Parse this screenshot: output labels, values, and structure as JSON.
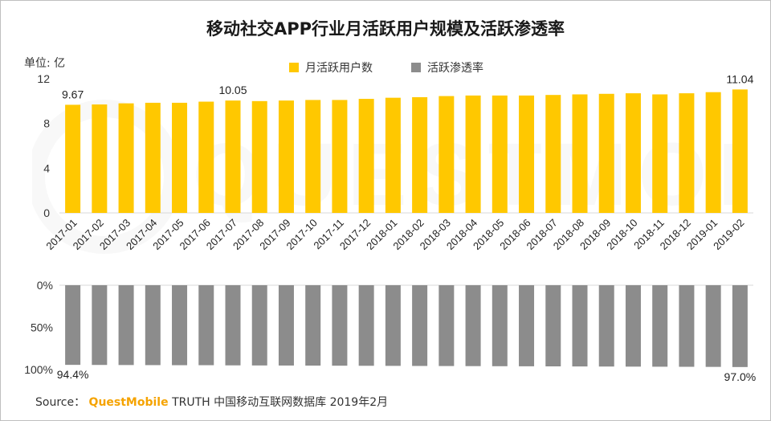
{
  "title": "移动社交APP行业月活跃用户规模及活跃渗透率",
  "unit_label": "单位: 亿",
  "legend": [
    {
      "label": "月活跃用户数",
      "color": "#FFC800"
    },
    {
      "label": "活跃渗透率",
      "color": "#8C8C8C"
    }
  ],
  "source": {
    "prefix": "Source：",
    "brand": "QuestMobile",
    "rest": "TRUTH 中国移动互联网数据库 2019年2月"
  },
  "chart_data": [
    {
      "type": "bar",
      "title": "",
      "ylabel": "单位: 亿",
      "ylim": [
        0,
        12
      ],
      "yticks": [
        "0",
        "4",
        "8",
        "12"
      ],
      "categories": [
        "2017-01",
        "2017-02",
        "2017-03",
        "2017-04",
        "2017-05",
        "2017-06",
        "2017-07",
        "2017-08",
        "2017-09",
        "2017-10",
        "2017-11",
        "2017-12",
        "2018-01",
        "2018-02",
        "2018-03",
        "2018-04",
        "2018-05",
        "2018-06",
        "2018-07",
        "2018-08",
        "2018-09",
        "2018-10",
        "2018-11",
        "2018-12",
        "2019-01",
        "2019-02"
      ],
      "series": [
        {
          "name": "月活跃用户数",
          "values": [
            9.67,
            9.7,
            9.8,
            9.85,
            9.85,
            9.95,
            10.05,
            10.0,
            10.05,
            10.1,
            10.1,
            10.2,
            10.3,
            10.35,
            10.45,
            10.5,
            10.5,
            10.5,
            10.55,
            10.6,
            10.65,
            10.7,
            10.6,
            10.7,
            10.8,
            11.04
          ]
        }
      ],
      "data_labels": [
        {
          "index": 0,
          "text": "9.67"
        },
        {
          "index": 6,
          "text": "10.05"
        },
        {
          "index": 25,
          "text": "11.04"
        }
      ],
      "color": "#FFC800",
      "grid": false
    },
    {
      "type": "bar",
      "title": "",
      "ylim": [
        0,
        100
      ],
      "yticks": [
        "0%",
        "50%",
        "100%"
      ],
      "orientation": "inverted",
      "series": [
        {
          "name": "活跃渗透率",
          "values": [
            94.4,
            94.5,
            94.6,
            94.7,
            94.8,
            94.8,
            95.0,
            95.1,
            95.2,
            95.3,
            95.4,
            95.5,
            95.6,
            95.7,
            95.8,
            95.9,
            96.0,
            96.1,
            96.2,
            96.3,
            96.4,
            96.5,
            96.6,
            96.7,
            96.8,
            97.0
          ]
        }
      ],
      "data_labels": [
        {
          "index": 0,
          "text": "94.4%"
        },
        {
          "index": 25,
          "text": "97.0%"
        }
      ],
      "color": "#8C8C8C",
      "grid": false
    }
  ]
}
